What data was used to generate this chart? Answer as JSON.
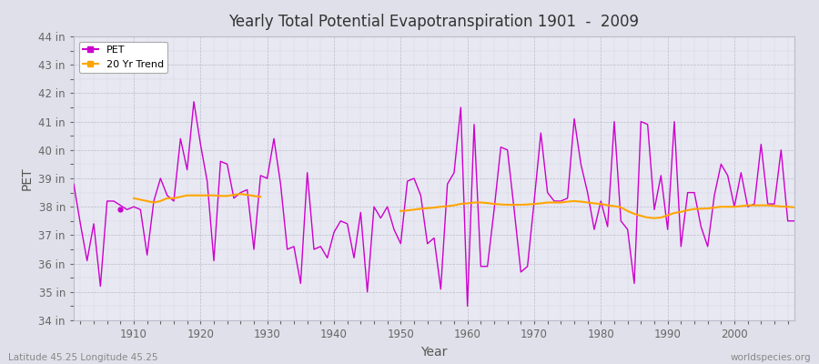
{
  "title": "Yearly Total Potential Evapotranspiration 1901  -  2009",
  "xlabel": "Year",
  "ylabel": "PET",
  "subtitle_left": "Latitude 45.25 Longitude 45.25",
  "subtitle_right": "worldspecies.org",
  "pet_color": "#cc00cc",
  "trend_color": "#ffa500",
  "bg_color": "#e0e0ea",
  "plot_bg_color": "#e8e8f2",
  "ylim": [
    34,
    44
  ],
  "ytick_labels": [
    "34 in",
    "35 in",
    "36 in",
    "37 in",
    "38 in",
    "39 in",
    "40 in",
    "41 in",
    "42 in",
    "43 in",
    "44 in"
  ],
  "ytick_values": [
    34,
    35,
    36,
    37,
    38,
    39,
    40,
    41,
    42,
    43,
    44
  ],
  "years": [
    1901,
    1902,
    1903,
    1904,
    1905,
    1906,
    1907,
    1909,
    1910,
    1911,
    1912,
    1913,
    1914,
    1915,
    1916,
    1917,
    1918,
    1919,
    1920,
    1921,
    1922,
    1923,
    1924,
    1925,
    1926,
    1927,
    1928,
    1929,
    1930,
    1931,
    1932,
    1933,
    1934,
    1935,
    1936,
    1937,
    1938,
    1939,
    1940,
    1941,
    1942,
    1943,
    1944,
    1945,
    1946,
    1947,
    1948,
    1949,
    1950,
    1951,
    1952,
    1953,
    1954,
    1955,
    1956,
    1957,
    1958,
    1959,
    1960,
    1961,
    1962,
    1963,
    1964,
    1965,
    1966,
    1967,
    1968,
    1969,
    1970,
    1971,
    1972,
    1973,
    1974,
    1975,
    1976,
    1977,
    1978,
    1979,
    1980,
    1981,
    1982,
    1983,
    1984,
    1985,
    1986,
    1987,
    1988,
    1989,
    1990,
    1991,
    1992,
    1993,
    1994,
    1995,
    1996,
    1997,
    1998,
    1999,
    2000,
    2001,
    2002,
    2003,
    2004,
    2005,
    2006,
    2007,
    2008,
    2009
  ],
  "pet_values": [
    38.8,
    37.4,
    36.1,
    37.4,
    35.2,
    38.2,
    38.2,
    37.9,
    38.0,
    37.9,
    36.3,
    38.2,
    39.0,
    38.4,
    38.2,
    40.4,
    39.3,
    41.7,
    40.2,
    38.9,
    36.1,
    39.6,
    39.5,
    38.3,
    38.5,
    38.6,
    36.5,
    39.1,
    39.0,
    40.4,
    38.8,
    36.5,
    36.6,
    35.3,
    39.2,
    36.5,
    36.6,
    36.2,
    37.1,
    37.5,
    37.4,
    36.2,
    37.8,
    35.0,
    38.0,
    37.6,
    38.0,
    37.2,
    36.7,
    38.9,
    39.0,
    38.4,
    36.7,
    36.9,
    35.1,
    38.8,
    39.2,
    41.5,
    34.5,
    40.9,
    35.9,
    35.9,
    37.9,
    40.1,
    40.0,
    37.9,
    35.7,
    35.9,
    38.2,
    40.6,
    38.5,
    38.2,
    38.2,
    38.3,
    41.1,
    39.5,
    38.5,
    37.2,
    38.2,
    37.3,
    41.0,
    37.5,
    37.2,
    35.3,
    41.0,
    40.9,
    37.9,
    39.1,
    37.2,
    41.0,
    36.6,
    38.5,
    38.5,
    37.3,
    36.6,
    38.4,
    39.5,
    39.1,
    38.0,
    39.2,
    38.0,
    38.1,
    40.2,
    38.1,
    38.1,
    40.0,
    37.5,
    37.5
  ],
  "single_point_year": 1908,
  "single_point_value": 37.9,
  "trend_seg1_years": [
    1910,
    1911,
    1912,
    1913,
    1914,
    1915,
    1916,
    1917,
    1918,
    1919,
    1920,
    1921,
    1922,
    1923,
    1924,
    1925,
    1926,
    1927,
    1928,
    1929
  ],
  "trend_seg1_values": [
    38.3,
    38.25,
    38.2,
    38.15,
    38.2,
    38.3,
    38.3,
    38.35,
    38.4,
    38.4,
    38.4,
    38.4,
    38.4,
    38.38,
    38.38,
    38.42,
    38.45,
    38.42,
    38.38,
    38.35
  ],
  "trend_seg2_years": [
    1950,
    1951,
    1952,
    1953,
    1954,
    1955,
    1956,
    1957,
    1958,
    1959,
    1960,
    1961,
    1962,
    1963,
    1964,
    1965,
    1966,
    1967,
    1968,
    1969,
    1970,
    1971,
    1972,
    1973,
    1974,
    1975,
    1976,
    1977,
    1978,
    1979,
    1980,
    1981,
    1982,
    1983,
    1984,
    1985,
    1986,
    1987,
    1988,
    1989,
    1990,
    1991,
    1992,
    1993,
    1994,
    1995,
    1996,
    1997,
    1998,
    1999,
    2000,
    2001,
    2002,
    2003,
    2004,
    2005,
    2006,
    2007,
    2008,
    2009
  ],
  "trend_seg2_values": [
    37.85,
    37.87,
    37.9,
    37.93,
    37.95,
    37.97,
    38.0,
    38.02,
    38.05,
    38.1,
    38.12,
    38.15,
    38.15,
    38.13,
    38.1,
    38.08,
    38.07,
    38.07,
    38.07,
    38.08,
    38.1,
    38.12,
    38.15,
    38.15,
    38.15,
    38.18,
    38.2,
    38.18,
    38.15,
    38.12,
    38.1,
    38.05,
    38.02,
    37.98,
    37.85,
    37.75,
    37.68,
    37.62,
    37.6,
    37.62,
    37.7,
    37.78,
    37.82,
    37.88,
    37.92,
    37.93,
    37.94,
    37.97,
    38.0,
    38.0,
    38.0,
    38.02,
    38.05,
    38.05,
    38.05,
    38.05,
    38.03,
    38.01,
    38.0,
    37.98
  ],
  "legend_pet_label": "PET",
  "legend_trend_label": "20 Yr Trend"
}
